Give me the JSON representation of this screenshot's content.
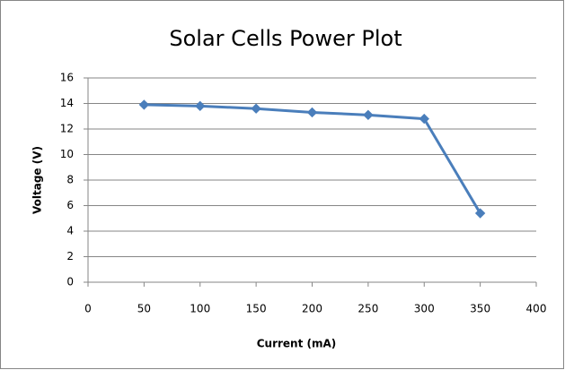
{
  "chart_data": {
    "type": "line",
    "title": "Solar Cells Power Plot",
    "x_label": "Current (mA)",
    "y_label": "Voltage (V)",
    "x": [
      50,
      100,
      150,
      200,
      250,
      300,
      350
    ],
    "series": [
      {
        "name": "Voltage",
        "color": "#4a7ebb",
        "values": [
          13.9,
          13.8,
          13.6,
          13.3,
          13.1,
          12.8,
          5.4
        ]
      }
    ],
    "xlim": [
      0,
      400
    ],
    "xticks": [
      0,
      50,
      100,
      150,
      200,
      250,
      300,
      350,
      400
    ],
    "ylim": [
      0,
      16
    ],
    "yticks": [
      0,
      2,
      4,
      6,
      8,
      10,
      12,
      14,
      16
    ],
    "grid": true,
    "marker": "diamond"
  }
}
